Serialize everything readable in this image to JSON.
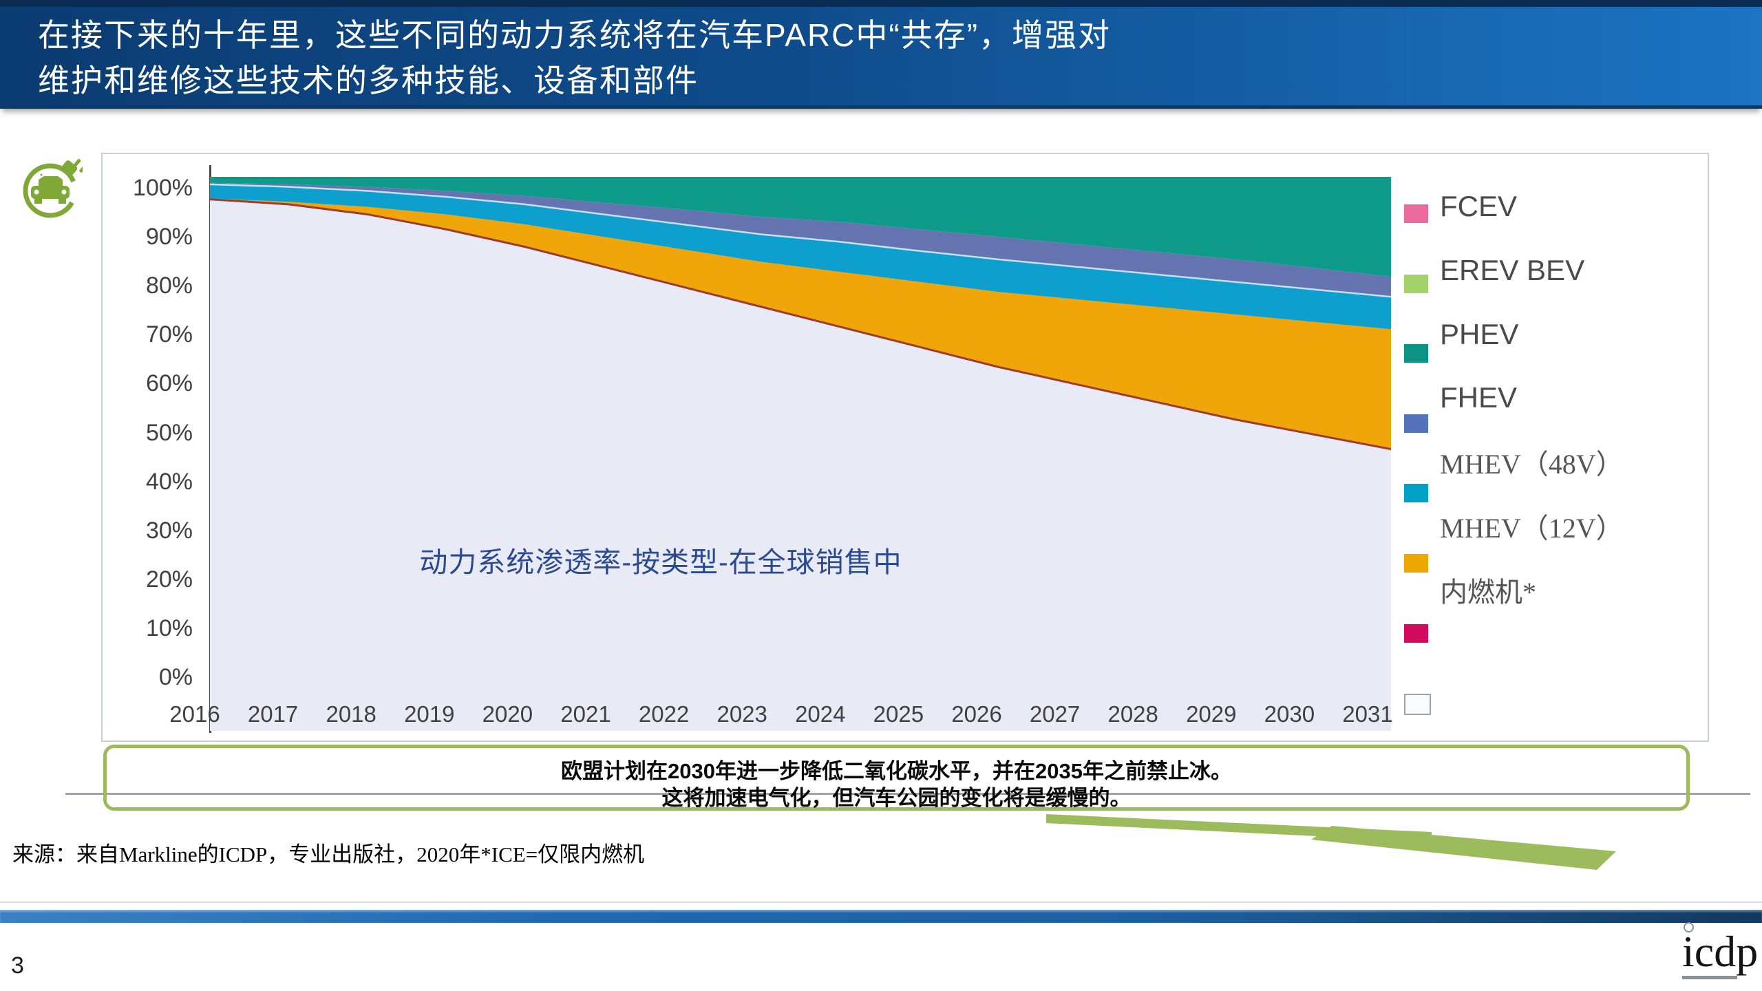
{
  "header": {
    "title_line1": "在接下来的十年里，这些不同的动力系统将在汽车PARC中“共存”，增强对",
    "title_line2": "维护和维修这些技术的多种技能、设备和部件"
  },
  "chart": {
    "inner_title": "动力系统渗透率-按类型-在全球销售中",
    "y_ticks": [
      "100%",
      "90%",
      "80%",
      "70%",
      "60%",
      "50%",
      "40%",
      "30%",
      "20%",
      "10%",
      "0%"
    ],
    "axis_color": "#4A4A4A",
    "ice_edge_color": "#9C3C33",
    "fhev_bottom_edge_color": "#C7E0F4"
  },
  "chart_data": {
    "type": "area",
    "stacked": true,
    "title": "动力系统渗透率-按类型-在全球销售中",
    "x": [
      2016,
      2017,
      2018,
      2019,
      2020,
      2021,
      2022,
      2023,
      2024,
      2025,
      2026,
      2027,
      2028,
      2029,
      2030,
      2031
    ],
    "ylim": [
      0,
      100
    ],
    "y_unit": "%",
    "grid": false,
    "legend_position": "right",
    "series": [
      {
        "name": "内燃机*",
        "color": "#E8EAF5",
        "values": [
          95.5,
          94.5,
          92.5,
          89.5,
          86,
          82,
          78,
          74,
          70,
          66,
          62,
          58.5,
          55,
          51.5,
          48.5,
          45.5
        ]
      },
      {
        "name": "MHEV（12V）",
        "color": "#F0A509",
        "values": [
          0.2,
          0.5,
          1.5,
          3,
          4.5,
          6,
          7.5,
          9,
          11,
          13,
          15,
          17,
          19,
          21,
          22.5,
          24
        ]
      },
      {
        "name": "MHEV（48V）",
        "color": "#0D9FCE",
        "values": [
          2.8,
          3,
          3.2,
          3.5,
          4,
          4.5,
          5,
          5.5,
          6,
          6.2,
          6.5,
          6.5,
          6.5,
          6.5,
          6.5,
          6.5
        ]
      },
      {
        "name": "FHEV",
        "color": "#6673B1",
        "values": [
          0.3,
          0.5,
          0.8,
          1.2,
          1.7,
          2.3,
          3,
          3.5,
          4,
          4.3,
          4.5,
          4.5,
          4.5,
          4.5,
          4.3,
          4
        ]
      },
      {
        "name": "PHEV",
        "color": "#0F9B89",
        "values": [
          1.2,
          1.5,
          2,
          2.8,
          3.8,
          5.2,
          6.5,
          8,
          9,
          10.5,
          12,
          13.5,
          15,
          16.5,
          18.2,
          20
        ]
      },
      {
        "name": "EREV BEV",
        "color": "#A5D36B",
        "values": [
          0,
          0,
          0,
          0,
          0,
          0,
          0,
          0,
          0,
          0,
          0,
          0,
          0,
          0,
          0,
          0
        ]
      },
      {
        "name": "FCEV",
        "color": "#EC6B9F",
        "values": [
          0,
          0,
          0,
          0,
          0,
          0,
          0,
          0,
          0,
          0,
          0,
          0,
          0,
          0,
          0,
          0
        ]
      }
    ],
    "legend": [
      {
        "label": "FCEV",
        "color": "#EC6B9F",
        "serif": false
      },
      {
        "label": "EREV BEV",
        "color": "#A5D36B",
        "serif": false
      },
      {
        "label": "PHEV",
        "color": "#0D9383",
        "serif": false
      },
      {
        "label": "FHEV",
        "color": "#5472B9",
        "serif": false
      },
      {
        "label": "MHEV（48V）",
        "color": "#009FC6",
        "serif": true
      },
      {
        "label": "MHEV（12V）",
        "color": "#EFA800",
        "serif": true
      },
      {
        "label": "内燃机*",
        "color": "#D30B5E",
        "serif": true
      },
      {
        "label": "",
        "color": "#FAFBFD",
        "serif": true
      }
    ]
  },
  "callout": {
    "line1": "欧盟计划在2030年进一步降低二氧化碳水平，并在2035年之前禁止冰。",
    "line2": "这将加速电气化，但汽车公园的变化将是缓慢的。",
    "border_color": "#9CBB5C"
  },
  "source": "来源：来自Markline的ICDP，专业出版社，2020年*ICE=仅限内燃机",
  "footer": {
    "page_number": "3",
    "logo_text": "icdp"
  },
  "icon": {
    "name": "ev-charging-icon",
    "color": "#7FA836"
  }
}
